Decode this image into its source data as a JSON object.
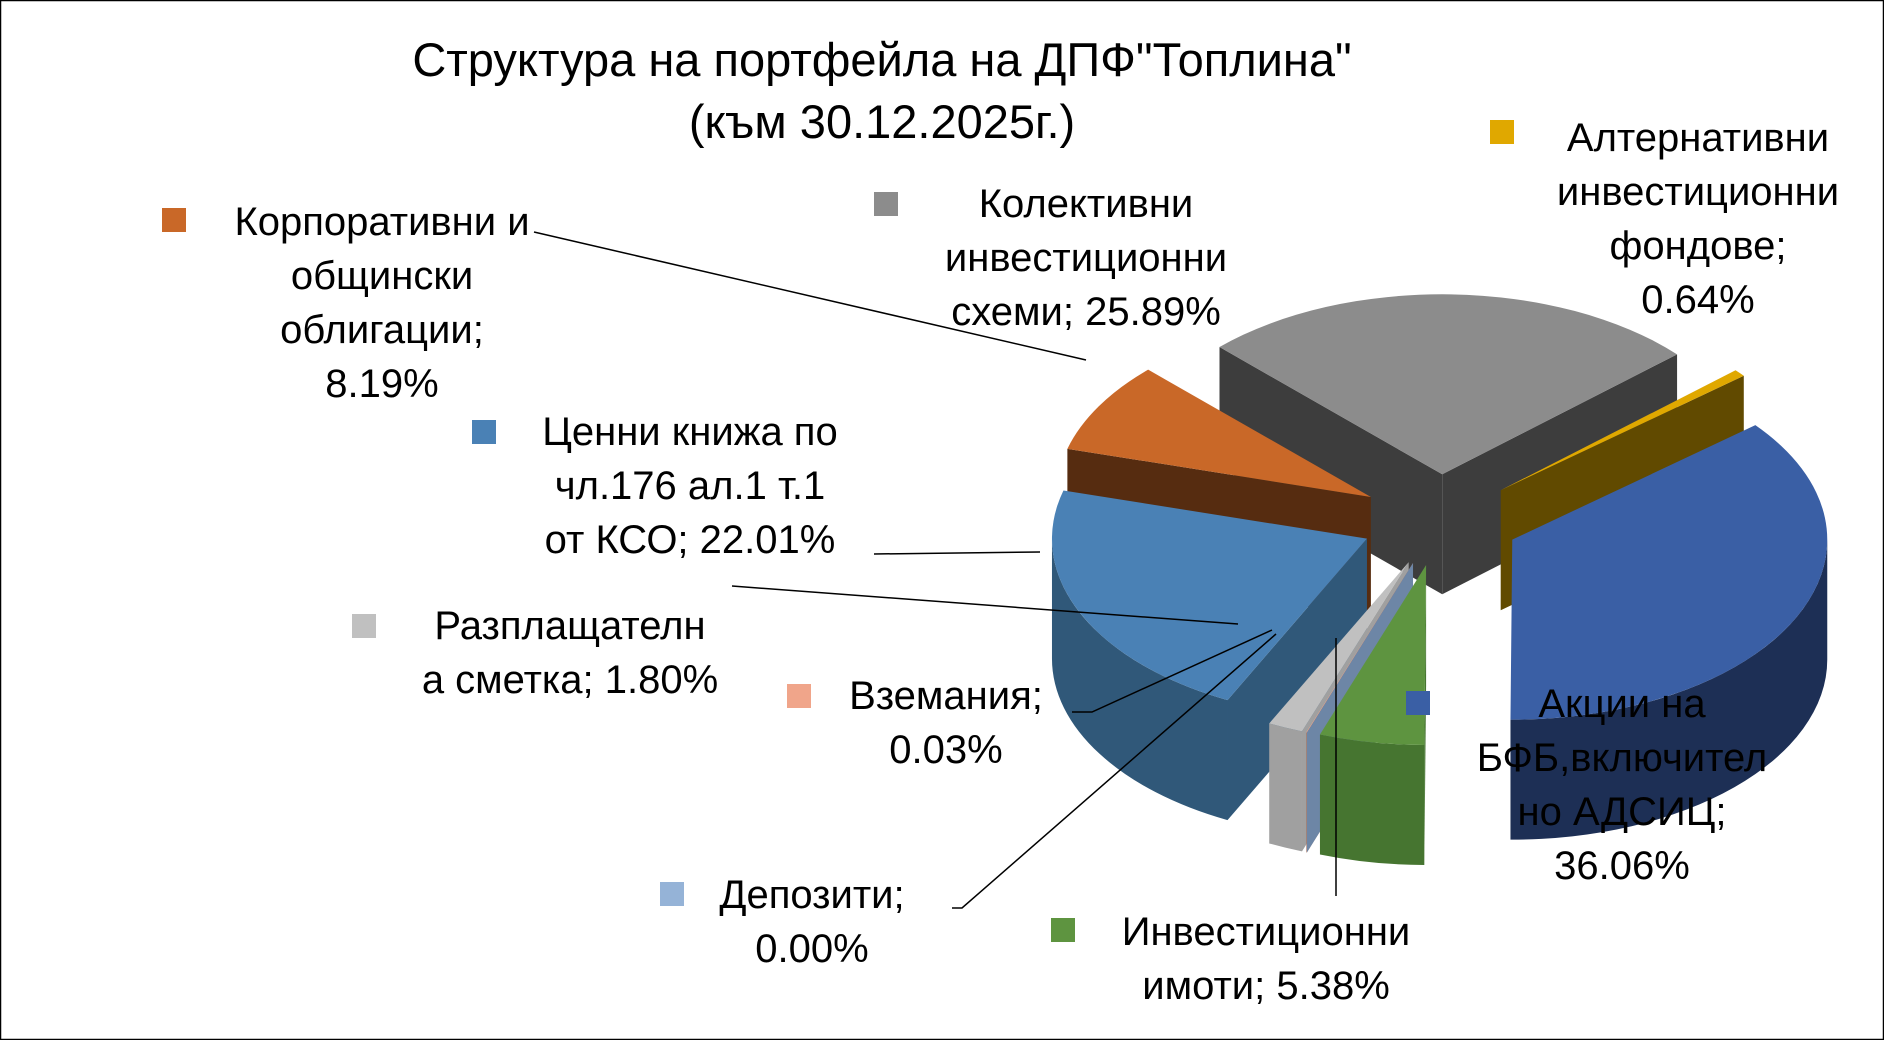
{
  "chart_data": {
    "type": "pie",
    "style": "3d-exploded",
    "title": [
      "Структура на портфейла на ДПФ\"Топлина\"",
      "(към 30.12.2025г.)"
    ],
    "start_angle_deg": -45,
    "slices": [
      {
        "name": "Колективни инвестиционни схеми",
        "value": 25.89,
        "top": "#8c8c8c",
        "side": "#3d3d3d",
        "lines": [
          "Колективни",
          "инвестиционни",
          "схеми; 25.89%"
        ]
      },
      {
        "name": "Алтернативни инвестиционни фондове",
        "value": 0.64,
        "top": "#e0a800",
        "side": "#614a00",
        "lines": [
          "Алтернативни",
          "инвестиционни",
          "фондове;",
          "0.64%"
        ]
      },
      {
        "name": "Акции на БФБ,включително АДСИЦ",
        "value": 36.06,
        "top": "#3a5fa5",
        "side": "#1d2f55",
        "lines": [
          "Акции на",
          "БФБ,включител",
          "но АДСИЦ;",
          "36.06%"
        ]
      },
      {
        "name": "Инвестиционни имоти",
        "value": 5.38,
        "top": "#5e9440",
        "side": "#467530",
        "lines": [
          "Инвестиционни",
          "имоти; 5.38%"
        ]
      },
      {
        "name": "Депозити",
        "value": 0.0,
        "top": "#95b3d7",
        "side": "#6d86a6",
        "lines": [
          "Депозити;",
          "0.00%"
        ]
      },
      {
        "name": "Вземания",
        "value": 0.03,
        "top": "#f0a58a",
        "side": "#a8705c",
        "lines": [
          "Вземания;",
          "0.03%"
        ]
      },
      {
        "name": "Разплащателна сметка",
        "value": 1.8,
        "top": "#c0c0c0",
        "side": "#a0a0a0",
        "lines": [
          "Разплащателн",
          "а сметка; 1.80%"
        ]
      },
      {
        "name": "Ценни книжа по чл.176 ал.1 т.1 от КСО",
        "value": 22.01,
        "top": "#4a81b5",
        "side": "#305879",
        "lines": [
          "Ценни книжа по",
          "чл.176 ал.1 т.1",
          "от КСО; 22.01%"
        ]
      },
      {
        "name": "Корпоративни и общински облигации",
        "value": 8.19,
        "top": "#c96828",
        "side": "#562c10",
        "lines": [
          "Корпоративни и",
          "общински",
          "облигации;",
          "8.19%"
        ]
      }
    ]
  }
}
